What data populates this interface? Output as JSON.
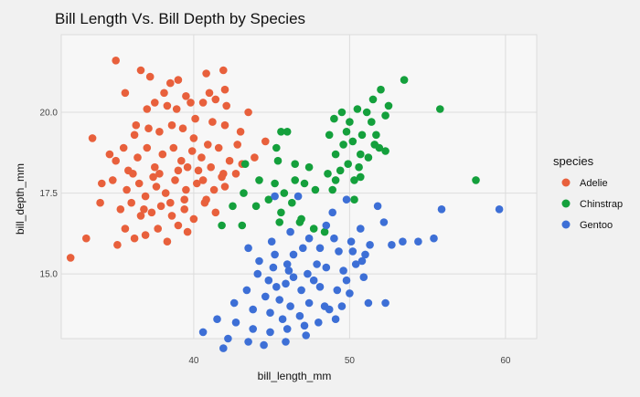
{
  "chart_data": {
    "type": "scatter",
    "title": "Bill Length Vs. Bill Depth by Species",
    "xlabel": "bill_length_mm",
    "ylabel": "bill_depth_mm",
    "xlim": [
      31.5,
      62
    ],
    "ylim": [
      13.0,
      22.4
    ],
    "xticks": [
      40,
      50,
      60
    ],
    "xtick_labels": [
      "40",
      "50",
      "60"
    ],
    "yticks": [
      15.0,
      17.5,
      20.0
    ],
    "ytick_labels": [
      "15.0",
      "17.5",
      "20.0"
    ],
    "grid": true,
    "legend": {
      "title": "species",
      "position": "right"
    },
    "series": [
      {
        "name": "Adelie",
        "color": "#e8603c",
        "points": [
          [
            35.0,
            21.6
          ],
          [
            36.6,
            21.3
          ],
          [
            37.2,
            21.1
          ],
          [
            38.5,
            20.9
          ],
          [
            39.0,
            21.0
          ],
          [
            40.8,
            21.2
          ],
          [
            41.9,
            21.3
          ],
          [
            42.0,
            20.7
          ],
          [
            41.0,
            20.6
          ],
          [
            39.5,
            20.5
          ],
          [
            37.5,
            20.3
          ],
          [
            36.3,
            19.6
          ],
          [
            37.0,
            20.1
          ],
          [
            38.3,
            20.2
          ],
          [
            38.9,
            20.1
          ],
          [
            39.8,
            20.3
          ],
          [
            40.6,
            20.3
          ],
          [
            41.4,
            20.4
          ],
          [
            42.1,
            20.2
          ],
          [
            43.5,
            20.0
          ],
          [
            44.6,
            19.1
          ],
          [
            33.5,
            19.2
          ],
          [
            34.6,
            18.7
          ],
          [
            35.5,
            18.9
          ],
          [
            36.2,
            19.3
          ],
          [
            37.1,
            19.5
          ],
          [
            37.8,
            19.4
          ],
          [
            38.6,
            19.6
          ],
          [
            39.3,
            19.5
          ],
          [
            40.1,
            19.8
          ],
          [
            41.2,
            19.7
          ],
          [
            42.0,
            19.6
          ],
          [
            43.0,
            19.4
          ],
          [
            35.0,
            18.5
          ],
          [
            35.8,
            18.2
          ],
          [
            36.4,
            18.6
          ],
          [
            37.0,
            18.9
          ],
          [
            37.5,
            18.3
          ],
          [
            38.0,
            18.7
          ],
          [
            38.7,
            18.9
          ],
          [
            39.2,
            18.5
          ],
          [
            39.9,
            18.8
          ],
          [
            40.5,
            18.6
          ],
          [
            40.9,
            19.0
          ],
          [
            41.6,
            18.9
          ],
          [
            42.3,
            18.5
          ],
          [
            43.1,
            18.4
          ],
          [
            43.9,
            18.6
          ],
          [
            34.1,
            17.8
          ],
          [
            34.8,
            17.9
          ],
          [
            35.7,
            17.6
          ],
          [
            36.5,
            17.8
          ],
          [
            36.9,
            17.4
          ],
          [
            37.6,
            17.7
          ],
          [
            38.2,
            17.5
          ],
          [
            38.8,
            17.9
          ],
          [
            39.5,
            17.6
          ],
          [
            40.2,
            17.8
          ],
          [
            40.8,
            17.3
          ],
          [
            41.3,
            17.6
          ],
          [
            42.0,
            17.7
          ],
          [
            42.7,
            18.1
          ],
          [
            34.0,
            17.2
          ],
          [
            35.3,
            17.0
          ],
          [
            36.0,
            17.2
          ],
          [
            36.6,
            16.8
          ],
          [
            37.3,
            16.9
          ],
          [
            37.9,
            17.1
          ],
          [
            38.6,
            16.8
          ],
          [
            39.4,
            17.0
          ],
          [
            40.0,
            16.7
          ],
          [
            40.7,
            17.2
          ],
          [
            41.4,
            16.9
          ],
          [
            35.6,
            16.4
          ],
          [
            36.2,
            16.1
          ],
          [
            36.9,
            16.2
          ],
          [
            37.7,
            16.4
          ],
          [
            38.3,
            16.0
          ],
          [
            39.0,
            16.5
          ],
          [
            39.6,
            16.3
          ],
          [
            33.1,
            16.1
          ],
          [
            32.1,
            15.5
          ],
          [
            35.1,
            15.9
          ],
          [
            35.6,
            20.6
          ],
          [
            38.1,
            20.6
          ],
          [
            36.1,
            18.1
          ],
          [
            37.8,
            18.1
          ],
          [
            39.0,
            18.2
          ],
          [
            39.6,
            18.3
          ],
          [
            40.3,
            18.2
          ],
          [
            41.1,
            18.3
          ],
          [
            41.9,
            18.1
          ],
          [
            39.4,
            17.3
          ],
          [
            38.5,
            17.2
          ],
          [
            36.8,
            17.0
          ],
          [
            37.4,
            18.0
          ],
          [
            40.6,
            17.9
          ],
          [
            41.8,
            18.0
          ],
          [
            42.8,
            19.0
          ],
          [
            40.0,
            19.2
          ]
        ]
      },
      {
        "name": "Chinstrap",
        "color": "#14a03c",
        "points": [
          [
            53.5,
            21.0
          ],
          [
            52.0,
            20.7
          ],
          [
            51.5,
            20.4
          ],
          [
            52.5,
            20.2
          ],
          [
            55.8,
            20.1
          ],
          [
            49.5,
            20.0
          ],
          [
            50.5,
            20.1
          ],
          [
            51.1,
            20.0
          ],
          [
            52.3,
            19.9
          ],
          [
            49.0,
            19.8
          ],
          [
            50.0,
            19.7
          ],
          [
            51.4,
            19.7
          ],
          [
            49.8,
            19.4
          ],
          [
            50.8,
            19.3
          ],
          [
            45.6,
            19.4
          ],
          [
            46.0,
            19.4
          ],
          [
            48.7,
            19.3
          ],
          [
            49.6,
            19.0
          ],
          [
            50.2,
            19.1
          ],
          [
            51.6,
            19.0
          ],
          [
            51.9,
            18.9
          ],
          [
            52.3,
            18.8
          ],
          [
            45.3,
            18.9
          ],
          [
            49.1,
            18.7
          ],
          [
            50.7,
            18.7
          ],
          [
            51.2,
            18.6
          ],
          [
            49.9,
            18.4
          ],
          [
            50.6,
            18.3
          ],
          [
            43.3,
            18.4
          ],
          [
            45.4,
            18.5
          ],
          [
            46.5,
            18.4
          ],
          [
            47.4,
            18.3
          ],
          [
            48.6,
            18.1
          ],
          [
            49.4,
            18.2
          ],
          [
            50.3,
            17.9
          ],
          [
            44.2,
            17.9
          ],
          [
            45.2,
            17.8
          ],
          [
            46.5,
            17.9
          ],
          [
            47.1,
            17.8
          ],
          [
            47.8,
            17.6
          ],
          [
            49.1,
            17.9
          ],
          [
            50.7,
            18.0
          ],
          [
            58.1,
            17.9
          ],
          [
            43.2,
            17.5
          ],
          [
            44.8,
            17.3
          ],
          [
            45.8,
            17.5
          ],
          [
            46.3,
            17.2
          ],
          [
            50.3,
            17.3
          ],
          [
            42.5,
            17.1
          ],
          [
            44.0,
            17.1
          ],
          [
            45.6,
            16.9
          ],
          [
            46.8,
            16.6
          ],
          [
            41.8,
            16.5
          ],
          [
            43.1,
            16.5
          ],
          [
            45.5,
            16.6
          ],
          [
            47.7,
            16.4
          ],
          [
            48.4,
            16.3
          ],
          [
            46.9,
            16.7
          ],
          [
            48.9,
            17.6
          ],
          [
            51.7,
            19.3
          ]
        ]
      },
      {
        "name": "Gentoo",
        "color": "#3d6fd6",
        "points": [
          [
            45.2,
            17.4
          ],
          [
            46.7,
            17.4
          ],
          [
            49.8,
            17.3
          ],
          [
            51.8,
            17.1
          ],
          [
            55.9,
            17.0
          ],
          [
            59.6,
            17.0
          ],
          [
            52.2,
            16.6
          ],
          [
            48.5,
            16.5
          ],
          [
            46.2,
            16.3
          ],
          [
            47.4,
            16.1
          ],
          [
            49.0,
            16.1
          ],
          [
            50.1,
            16.0
          ],
          [
            51.3,
            15.9
          ],
          [
            52.7,
            15.9
          ],
          [
            53.4,
            16.0
          ],
          [
            54.4,
            16.0
          ],
          [
            55.4,
            16.1
          ],
          [
            48.1,
            15.8
          ],
          [
            49.3,
            15.7
          ],
          [
            50.2,
            15.7
          ],
          [
            51.0,
            15.6
          ],
          [
            47.0,
            15.8
          ],
          [
            45.2,
            15.6
          ],
          [
            46.4,
            15.6
          ],
          [
            43.5,
            15.8
          ],
          [
            44.2,
            15.4
          ],
          [
            45.1,
            15.2
          ],
          [
            46.1,
            15.1
          ],
          [
            47.3,
            15.0
          ],
          [
            48.5,
            15.2
          ],
          [
            49.6,
            15.1
          ],
          [
            50.4,
            15.3
          ],
          [
            50.9,
            14.9
          ],
          [
            44.8,
            14.8
          ],
          [
            45.9,
            14.7
          ],
          [
            46.9,
            14.5
          ],
          [
            48.1,
            14.6
          ],
          [
            49.2,
            14.5
          ],
          [
            50.0,
            14.4
          ],
          [
            43.4,
            14.5
          ],
          [
            44.6,
            14.3
          ],
          [
            45.5,
            14.2
          ],
          [
            46.2,
            14.0
          ],
          [
            47.4,
            14.1
          ],
          [
            48.4,
            14.0
          ],
          [
            49.5,
            14.0
          ],
          [
            51.2,
            14.1
          ],
          [
            52.3,
            14.1
          ],
          [
            42.6,
            14.1
          ],
          [
            43.8,
            13.9
          ],
          [
            44.9,
            13.8
          ],
          [
            45.7,
            13.6
          ],
          [
            46.8,
            13.7
          ],
          [
            48.0,
            13.5
          ],
          [
            49.1,
            13.6
          ],
          [
            42.7,
            13.5
          ],
          [
            43.8,
            13.3
          ],
          [
            44.9,
            13.2
          ],
          [
            46.0,
            13.3
          ],
          [
            47.1,
            13.4
          ],
          [
            41.5,
            13.6
          ],
          [
            40.6,
            13.2
          ],
          [
            42.2,
            13.0
          ],
          [
            43.5,
            12.9
          ],
          [
            45.9,
            12.9
          ],
          [
            47.2,
            13.1
          ],
          [
            41.9,
            12.7
          ],
          [
            44.5,
            12.8
          ],
          [
            46.4,
            14.9
          ],
          [
            47.9,
            15.3
          ],
          [
            45.0,
            16.0
          ],
          [
            50.7,
            16.4
          ],
          [
            48.9,
            16.9
          ],
          [
            46.0,
            15.3
          ],
          [
            47.7,
            14.8
          ],
          [
            49.8,
            14.8
          ],
          [
            44.1,
            15.0
          ],
          [
            45.3,
            14.6
          ],
          [
            48.7,
            13.9
          ],
          [
            50.8,
            15.4
          ]
        ]
      }
    ]
  }
}
